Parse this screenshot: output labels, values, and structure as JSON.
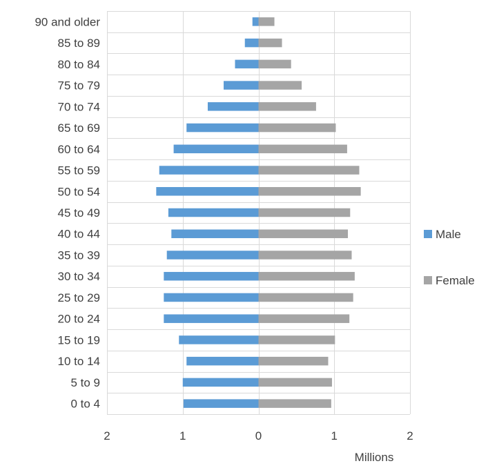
{
  "chart_data": {
    "type": "bar",
    "orientation": "horizontal",
    "layout": "population-pyramid",
    "title": "",
    "xlabel": "Millions",
    "ylabel": "",
    "xlim": [
      -2,
      2
    ],
    "x_ticks": [
      -2,
      -1,
      0,
      1,
      2
    ],
    "x_tick_labels": [
      "2",
      "1",
      "0",
      "1",
      "2"
    ],
    "grid": true,
    "legend_position": "right",
    "categories": [
      "90 and older",
      "85 to 89",
      "80 to 84",
      "75 to 79",
      "70 to 74",
      "65 to 69",
      "60 to 64",
      "55 to 59",
      "50 to 54",
      "45 to 49",
      "40 to 44",
      "35 to 39",
      "30 to 34",
      "25 to 29",
      "20 to 24",
      "15 to 19",
      "10 to 14",
      "5 to 9",
      "0 to 4"
    ],
    "series": [
      {
        "name": "Male",
        "color": "#5b9bd5",
        "values": [
          -0.08,
          -0.18,
          -0.31,
          -0.46,
          -0.67,
          -0.95,
          -1.12,
          -1.31,
          -1.35,
          -1.19,
          -1.15,
          -1.21,
          -1.25,
          -1.25,
          -1.25,
          -1.05,
          -0.95,
          -1.0,
          -0.99
        ]
      },
      {
        "name": "Female",
        "color": "#a5a5a5",
        "values": [
          0.21,
          0.31,
          0.43,
          0.57,
          0.76,
          1.02,
          1.17,
          1.33,
          1.35,
          1.21,
          1.18,
          1.23,
          1.27,
          1.25,
          1.2,
          1.01,
          0.92,
          0.97,
          0.96
        ]
      }
    ]
  }
}
